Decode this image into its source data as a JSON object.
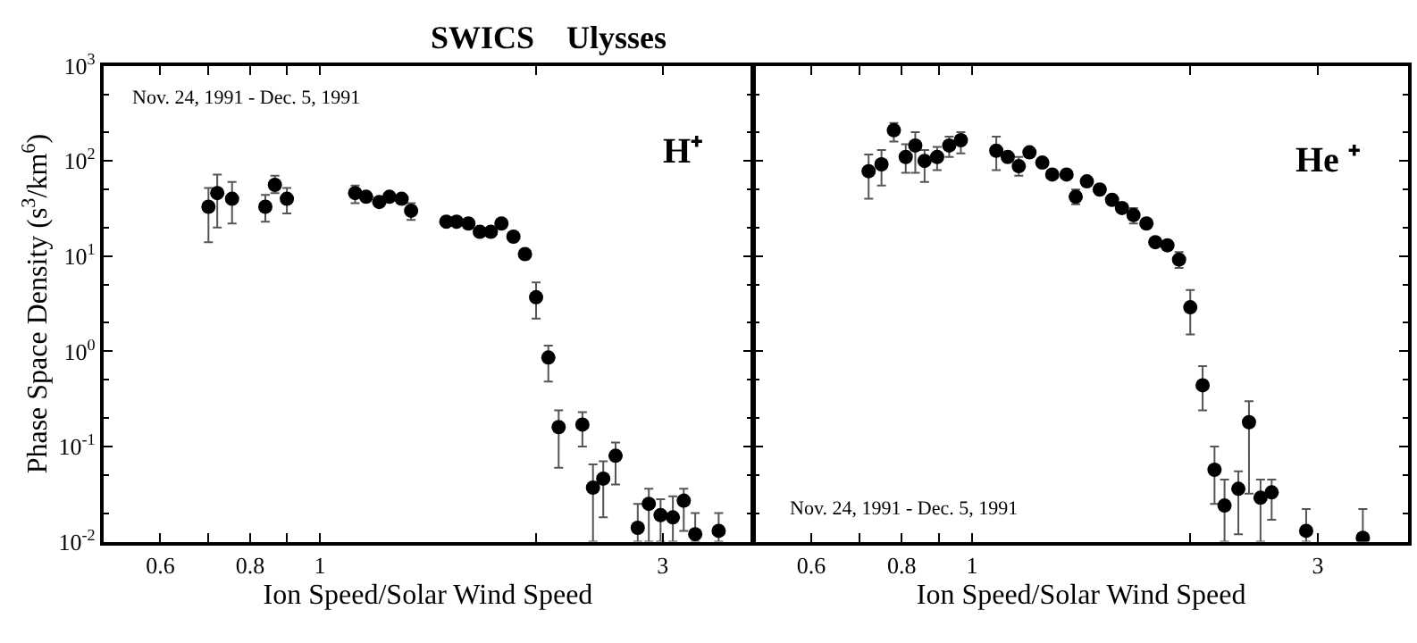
{
  "chart_data": [
    {
      "type": "scatter",
      "title": "SWICS    Ulysses",
      "xlabel": "Ion Speed/Solar Wind Speed",
      "ylabel": "Phase Space Density (s$^{3}$/km$^{6}$)",
      "annotations": [
        "Nov. 24, 1991 - Dec. 5, 1991",
        "H⁺"
      ],
      "x": [
        0.7,
        0.72,
        0.755,
        0.84,
        0.866,
        0.9,
        1.12,
        1.16,
        1.21,
        1.25,
        1.3,
        1.34,
        1.5,
        1.55,
        1.61,
        1.67,
        1.73,
        1.79,
        1.86,
        1.93,
        2.0,
        2.08,
        2.15,
        2.32,
        2.4,
        2.48,
        2.58,
        2.77,
        2.87,
        2.98,
        3.1,
        3.21,
        3.33,
        3.59
      ],
      "values": [
        33,
        46,
        40,
        33,
        56,
        40,
        46,
        42,
        37,
        42,
        40,
        30,
        23,
        23,
        22,
        18,
        18,
        22,
        16,
        10.5,
        3.7,
        0.86,
        0.16,
        0.17,
        0.037,
        0.046,
        0.08,
        0.014,
        0.025,
        0.019,
        0.018,
        0.027,
        0.012,
        0.013
      ],
      "errors": [
        [
          14,
          52
        ],
        [
          20,
          72
        ],
        [
          22,
          60
        ],
        [
          23,
          44
        ],
        [
          46,
          70
        ],
        [
          28,
          52
        ],
        [
          36,
          55
        ],
        null,
        null,
        null,
        null,
        [
          24,
          36
        ],
        null,
        null,
        null,
        null,
        null,
        null,
        null,
        null,
        [
          2.2,
          5.3
        ],
        [
          0.48,
          1.15
        ],
        [
          0.06,
          0.24
        ],
        [
          0.1,
          0.23
        ],
        [
          0.01,
          0.065
        ],
        [
          0.018,
          0.07
        ],
        [
          0.04,
          0.11
        ],
        [
          0.01,
          0.025
        ],
        [
          0.01,
          0.036
        ],
        [
          0.01,
          0.028
        ],
        [
          0.01,
          0.03
        ],
        [
          0.013,
          0.036
        ],
        [
          0.01,
          0.02
        ],
        [
          0.01,
          0.02
        ]
      ],
      "color": "#000000",
      "marker": "circle",
      "log": "xy",
      "legend": false,
      "xlim": [
        0.5,
        4
      ],
      "xticks": [
        0.6,
        {
          "value": 0.7,
          "label": null
        },
        0.8,
        {
          "value": 0.9,
          "label": null
        },
        1,
        {
          "value": 2,
          "label": null
        },
        3
      ],
      "ylim": [
        0.01,
        1000
      ],
      "yticks": [
        {
          "value": 0.01,
          "label": "10$^{-2}$"
        },
        {
          "value": 0.1,
          "label": "10$^{-1}$"
        },
        {
          "value": 1,
          "label": "10$^{0}$"
        },
        {
          "value": 10,
          "label": "10$^{1}$"
        },
        {
          "value": 100,
          "label": "10$^{2}$"
        },
        {
          "value": 1000,
          "label": "10$^{3}$"
        }
      ]
    },
    {
      "type": "scatter",
      "xlabel": "Ion Speed/Solar Wind Speed",
      "annotations": [
        "Nov. 24, 1991 - Dec. 5, 1991",
        "He ⁺"
      ],
      "x": [
        0.72,
        0.75,
        0.78,
        0.81,
        0.835,
        0.86,
        0.895,
        0.93,
        0.965,
        1.08,
        1.12,
        1.16,
        1.2,
        1.25,
        1.29,
        1.35,
        1.39,
        1.44,
        1.5,
        1.56,
        1.61,
        1.67,
        1.74,
        1.79,
        1.86,
        1.93,
        2.0,
        2.08,
        2.16,
        2.23,
        2.33,
        2.41,
        2.5,
        2.59,
        2.89,
        3.46
      ],
      "values": [
        78,
        92,
        210,
        110,
        145,
        100,
        110,
        145,
        165,
        128,
        110,
        88,
        123,
        96,
        72,
        72,
        42,
        61,
        50,
        39,
        32,
        27,
        22,
        14,
        13,
        9.2,
        2.9,
        0.44,
        0.057,
        0.024,
        0.036,
        0.18,
        0.029,
        0.033,
        0.013,
        0.011
      ],
      "errors": [
        [
          40,
          117
        ],
        [
          55,
          130
        ],
        [
          160,
          250
        ],
        [
          75,
          150
        ],
        [
          75,
          200
        ],
        [
          60,
          130
        ],
        [
          80,
          140
        ],
        [
          110,
          180
        ],
        [
          120,
          200
        ],
        [
          80,
          180
        ],
        null,
        [
          70,
          110
        ],
        null,
        null,
        null,
        null,
        [
          35,
          50
        ],
        null,
        null,
        null,
        null,
        [
          22,
          32
        ],
        null,
        null,
        null,
        [
          7.5,
          11
        ],
        [
          1.5,
          4.4
        ],
        [
          0.24,
          0.7
        ],
        [
          0.025,
          0.1
        ],
        [
          0.01,
          0.045
        ],
        [
          0.012,
          0.055
        ],
        [
          0.032,
          0.3
        ],
        [
          0.01,
          0.045
        ],
        [
          0.017,
          0.045
        ],
        [
          0.01,
          0.022
        ],
        [
          0.01,
          0.022
        ]
      ],
      "color": "#000000",
      "marker": "circle",
      "log": "xy",
      "legend": false,
      "tick_labels": "x",
      "xlim": [
        0.5,
        4
      ],
      "xticks": [
        0.6,
        {
          "value": 0.7,
          "label": null
        },
        0.8,
        {
          "value": 0.9,
          "label": null
        },
        1,
        {
          "value": 2,
          "label": null
        },
        3
      ],
      "ylim": [
        0.01,
        1000
      ],
      "yticks": [
        0.01,
        0.1,
        1,
        10,
        100,
        1000
      ]
    }
  ]
}
